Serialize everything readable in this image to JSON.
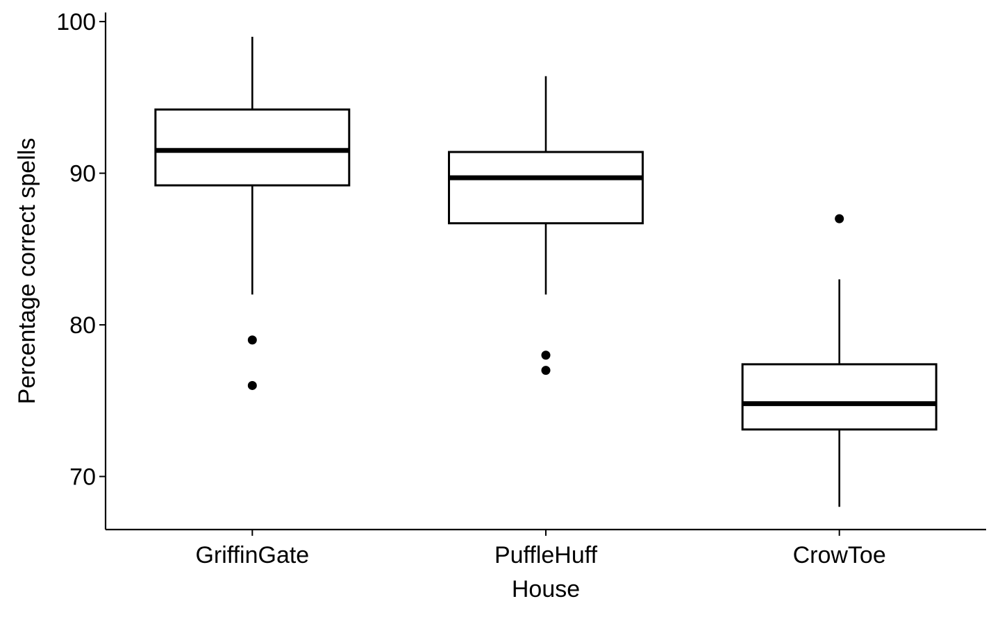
{
  "chart_data": {
    "type": "boxplot",
    "xlabel": "House",
    "ylabel": "Percentage correct spells",
    "ylim": [
      66.5,
      100.6
    ],
    "y_ticks": [
      70,
      80,
      90,
      100
    ],
    "grid": false,
    "categories": [
      "GriffinGate",
      "PuffleHuff",
      "CrowToe"
    ],
    "boxes": [
      {
        "category": "GriffinGate",
        "whisker_low": 82,
        "q1": 89.2,
        "median": 91.5,
        "q3": 94.2,
        "whisker_high": 99,
        "outliers": [
          79,
          76
        ]
      },
      {
        "category": "PuffleHuff",
        "whisker_low": 82,
        "q1": 86.7,
        "median": 89.7,
        "q3": 91.4,
        "whisker_high": 96.4,
        "outliers": [
          78,
          77
        ]
      },
      {
        "category": "CrowToe",
        "whisker_low": 68,
        "q1": 73.1,
        "median": 74.8,
        "q3": 77.4,
        "whisker_high": 83,
        "outliers": [
          87
        ]
      }
    ]
  }
}
